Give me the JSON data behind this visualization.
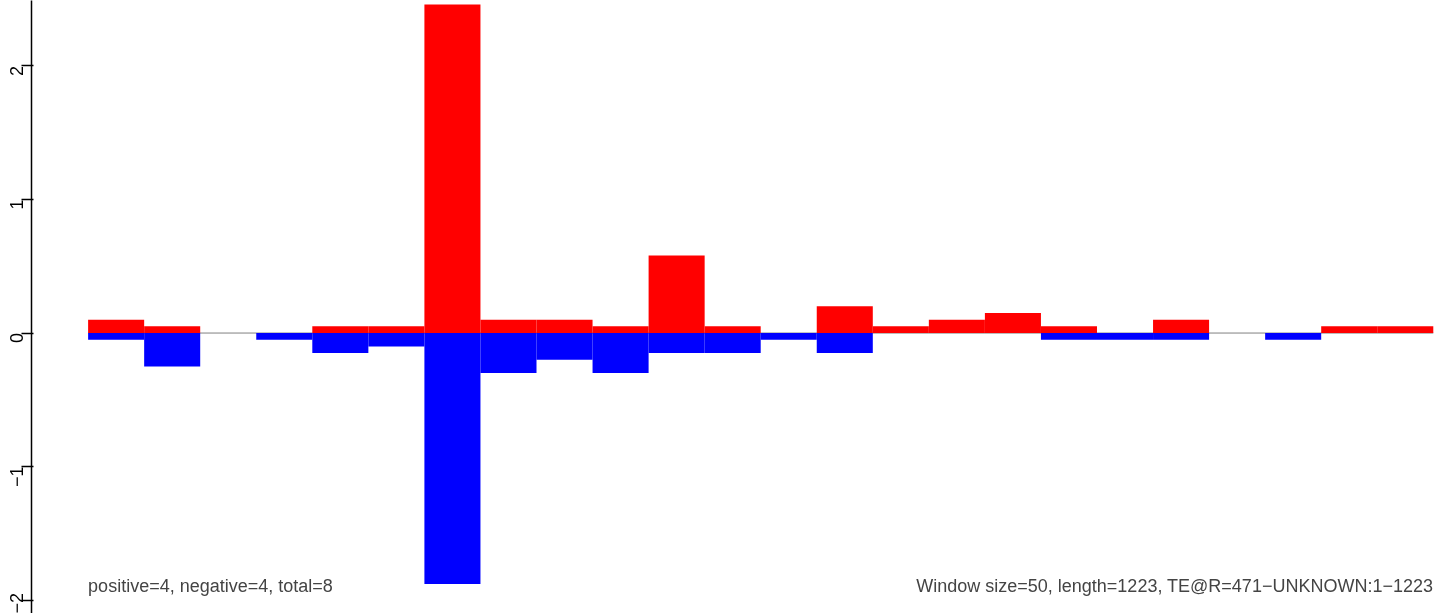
{
  "chart_data": {
    "type": "bar",
    "categories": [
      null,
      null,
      null,
      null,
      null,
      null,
      null,
      null,
      null,
      null,
      null,
      null,
      null,
      null,
      null,
      null,
      null,
      null,
      null,
      null,
      null,
      null,
      null,
      null
    ],
    "series": [
      {
        "color": "#ff0000",
        "values": [
          0.1,
          0.05,
          0,
          0,
          0.05,
          0.05,
          2.46,
          0.1,
          0.1,
          0.05,
          0.58,
          0.05,
          0,
          0.2,
          0.05,
          0.1,
          0.15,
          0.05,
          0,
          0.1,
          0,
          0,
          0.05,
          0.05
        ]
      },
      {
        "color": "#0000ff",
        "values": [
          -0.05,
          -0.25,
          0,
          -0.05,
          -0.15,
          -0.1,
          -1.88,
          -0.3,
          -0.2,
          -0.3,
          -0.15,
          -0.15,
          -0.05,
          -0.15,
          0,
          0,
          0,
          -0.05,
          -0.05,
          -0.05,
          0,
          -0.05,
          0,
          0
        ]
      }
    ],
    "ylim": [
      -2.1,
      2.49
    ],
    "stacked": true,
    "yticks": [
      {
        "value": -2,
        "label": "−2"
      },
      {
        "value": -1,
        "label": "−1"
      },
      0,
      1,
      2
    ],
    "ref_lines": [
      {
        "axis": "y",
        "value": 0,
        "color": "#808080"
      }
    ],
    "tick_labels": "y",
    "grid": false,
    "annotations": [
      "positive=4, negative=4, total=8",
      "Window size=50, length=1223, TE@R=471−UNKNOWN:1−1223"
    ]
  }
}
